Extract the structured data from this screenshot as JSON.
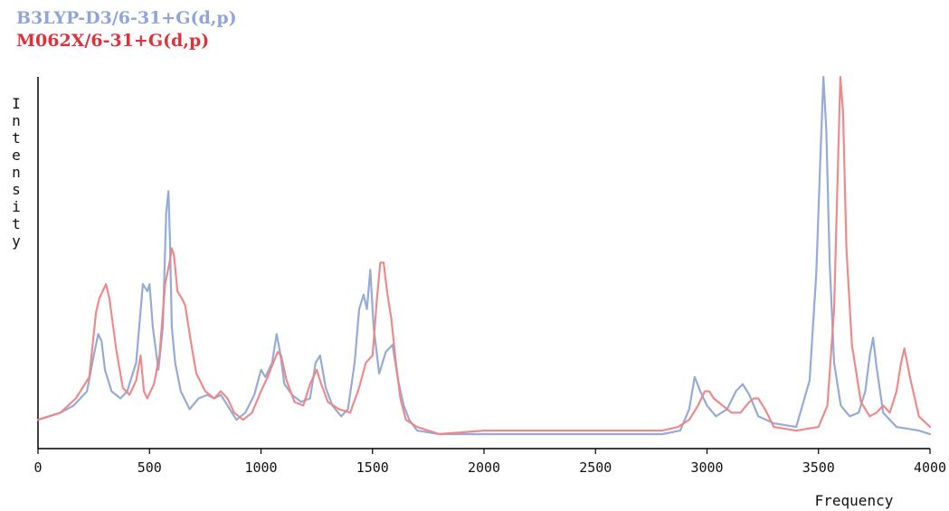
{
  "chart_data": {
    "type": "line",
    "xlabel": "Frequency",
    "ylabel": "Intensity",
    "xlim": [
      0,
      4000
    ],
    "ylim": [
      0,
      100
    ],
    "xticks": [
      "0",
      "500",
      "1000",
      "1500",
      "2000",
      "2500",
      "3000",
      "3500",
      "4000"
    ],
    "grid": false,
    "legend_position": "top-left",
    "series": [
      {
        "name": "B3LYP-D3/6-31+G(d,p)",
        "color": "#8fa6d6",
        "x": [
          0,
          100,
          160,
          220,
          250,
          270,
          285,
          300,
          330,
          370,
          400,
          440,
          470,
          490,
          500,
          515,
          540,
          560,
          575,
          585,
          592,
          600,
          615,
          640,
          680,
          720,
          760,
          790,
          820,
          850,
          890,
          930,
          970,
          1000,
          1020,
          1050,
          1070,
          1085,
          1105,
          1140,
          1180,
          1220,
          1245,
          1265,
          1290,
          1320,
          1360,
          1390,
          1420,
          1440,
          1460,
          1475,
          1490,
          1505,
          1530,
          1560,
          1590,
          1615,
          1640,
          1665,
          1700,
          1800,
          2000,
          2400,
          2800,
          2880,
          2920,
          2945,
          2970,
          3000,
          3040,
          3090,
          3130,
          3160,
          3190,
          3230,
          3300,
          3400,
          3460,
          3490,
          3510,
          3522,
          3535,
          3550,
          3570,
          3600,
          3640,
          3680,
          3710,
          3730,
          3745,
          3760,
          3790,
          3850,
          3950,
          4000
        ],
        "y": [
          4,
          6,
          8,
          12,
          22,
          28,
          26,
          18,
          12,
          10,
          12,
          20,
          42,
          40,
          42,
          30,
          18,
          30,
          62,
          68,
          54,
          30,
          20,
          12,
          7,
          10,
          11,
          10,
          11,
          8,
          4,
          6,
          11,
          18,
          16,
          20,
          28,
          23,
          14,
          11,
          9,
          10,
          20,
          22,
          13,
          8,
          5,
          7,
          20,
          35,
          39,
          35,
          46,
          30,
          17,
          23,
          25,
          15,
          8,
          4,
          1,
          0,
          0,
          0,
          0,
          1,
          7,
          16,
          12,
          8,
          5,
          7,
          12,
          14,
          11,
          5,
          3,
          2,
          15,
          45,
          80,
          100,
          85,
          48,
          20,
          8,
          5,
          6,
          12,
          22,
          27,
          19,
          6,
          2,
          1,
          0
        ]
      },
      {
        "name": "M062X/6-31+G(d,p)",
        "color": "#ec8585",
        "x": [
          0,
          100,
          170,
          230,
          260,
          275,
          290,
          305,
          320,
          350,
          380,
          410,
          440,
          460,
          475,
          490,
          520,
          545,
          570,
          590,
          600,
          610,
          625,
          645,
          660,
          685,
          710,
          750,
          790,
          820,
          850,
          880,
          920,
          960,
          1000,
          1030,
          1055,
          1075,
          1090,
          1115,
          1150,
          1190,
          1220,
          1250,
          1270,
          1300,
          1350,
          1400,
          1440,
          1470,
          1500,
          1520,
          1535,
          1550,
          1565,
          1585,
          1605,
          1625,
          1650,
          1700,
          1800,
          2000,
          2400,
          2800,
          2870,
          2920,
          2960,
          2990,
          3010,
          3030,
          3070,
          3110,
          3150,
          3190,
          3210,
          3230,
          3260,
          3300,
          3400,
          3500,
          3540,
          3570,
          3585,
          3598,
          3610,
          3625,
          3650,
          3690,
          3730,
          3760,
          3790,
          3820,
          3850,
          3870,
          3885,
          3910,
          3950,
          4000
        ],
        "y": [
          4,
          6,
          10,
          16,
          34,
          38,
          40,
          42,
          38,
          24,
          13,
          11,
          15,
          22,
          12,
          10,
          14,
          22,
          42,
          48,
          52,
          50,
          40,
          38,
          36,
          26,
          17,
          12,
          10,
          12,
          10,
          6,
          4,
          6,
          12,
          16,
          20,
          23,
          22,
          15,
          9,
          8,
          14,
          18,
          14,
          9,
          7,
          6,
          13,
          20,
          22,
          38,
          48,
          48,
          40,
          32,
          20,
          10,
          4,
          2,
          0,
          1,
          1,
          1,
          2,
          4,
          8,
          12,
          12,
          10,
          8,
          6,
          6,
          9,
          10,
          10,
          7,
          2,
          1,
          2,
          8,
          35,
          70,
          100,
          90,
          52,
          25,
          9,
          5,
          6,
          8,
          6,
          12,
          20,
          24,
          16,
          5,
          2
        ]
      }
    ]
  }
}
